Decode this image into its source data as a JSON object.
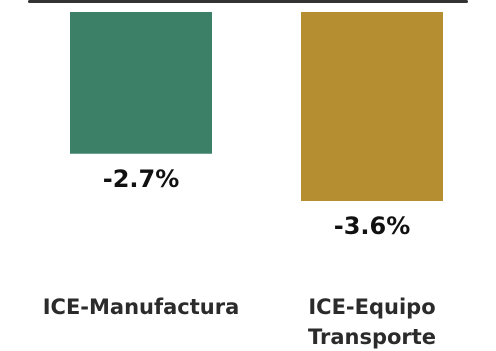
{
  "chart_data": {
    "type": "bar",
    "categories": [
      {
        "lines": [
          "ICE-Manufactura"
        ]
      },
      {
        "lines": [
          "ICE-Equipo",
          "Transporte"
        ]
      }
    ],
    "values": [
      -2.7,
      -3.6
    ],
    "value_labels": [
      "-2.7%",
      "-3.6%"
    ],
    "colors": [
      "#3d8068",
      "#b48e30"
    ],
    "ylim": [
      -4,
      0
    ],
    "grid": false,
    "legend": "none"
  }
}
